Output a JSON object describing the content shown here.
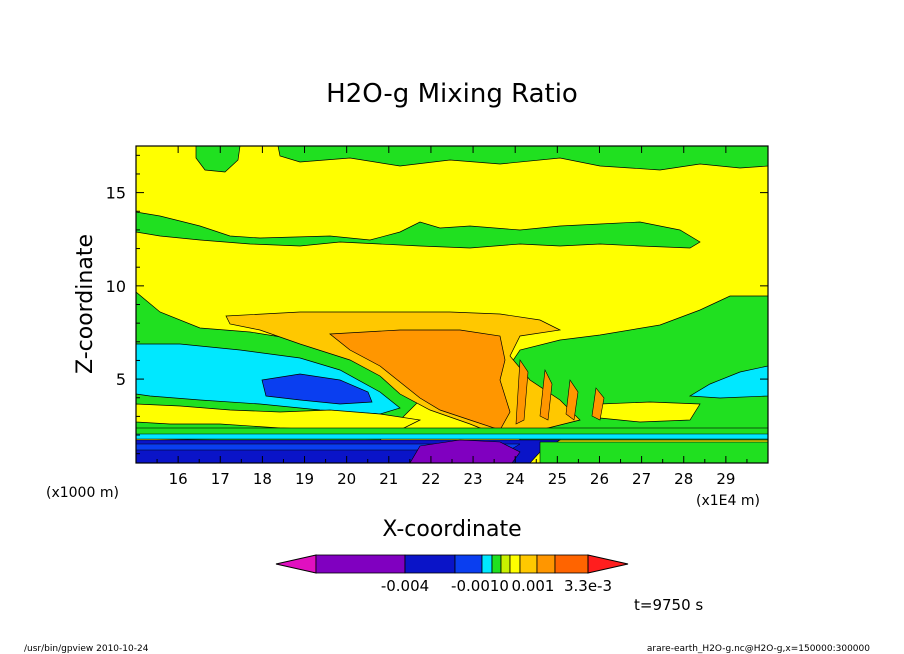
{
  "chart_data": {
    "type": "heatmap",
    "title": "H2O-g Mixing Ratio",
    "xlabel": "X-coordinate",
    "ylabel": "Z-coordinate",
    "x_unit_left": "(x1000 m)",
    "x_unit_right": "(x1E4 m)",
    "xlim": [
      15.0,
      30.0
    ],
    "ylim": [
      0.5,
      17.5
    ],
    "x_ticks": [
      "16",
      "17",
      "18",
      "19",
      "20",
      "21",
      "22",
      "23",
      "24",
      "25",
      "26",
      "27",
      "28",
      "29"
    ],
    "y_ticks": [
      "5",
      "10",
      "15"
    ],
    "time_label": "t=9750 s",
    "colorbar": {
      "labels": [
        "-0.004",
        "-0.0010",
        "0.001",
        "3.3e-3"
      ],
      "colors": [
        "#e010c0",
        "#8000c0",
        "#7a00c8",
        "#0a14c8",
        "#0a3ef0",
        "#00e8ff",
        "#20e020",
        "#c8f000",
        "#ffff00",
        "#ffc800",
        "#ff9600",
        "#ff6400",
        "#ff1e1e"
      ]
    }
  },
  "footer": {
    "left": "/usr/bin/gpview   2010-10-24",
    "right": "arare-earth_H2O-g.nc@H2O-g,x=150000:300000"
  }
}
